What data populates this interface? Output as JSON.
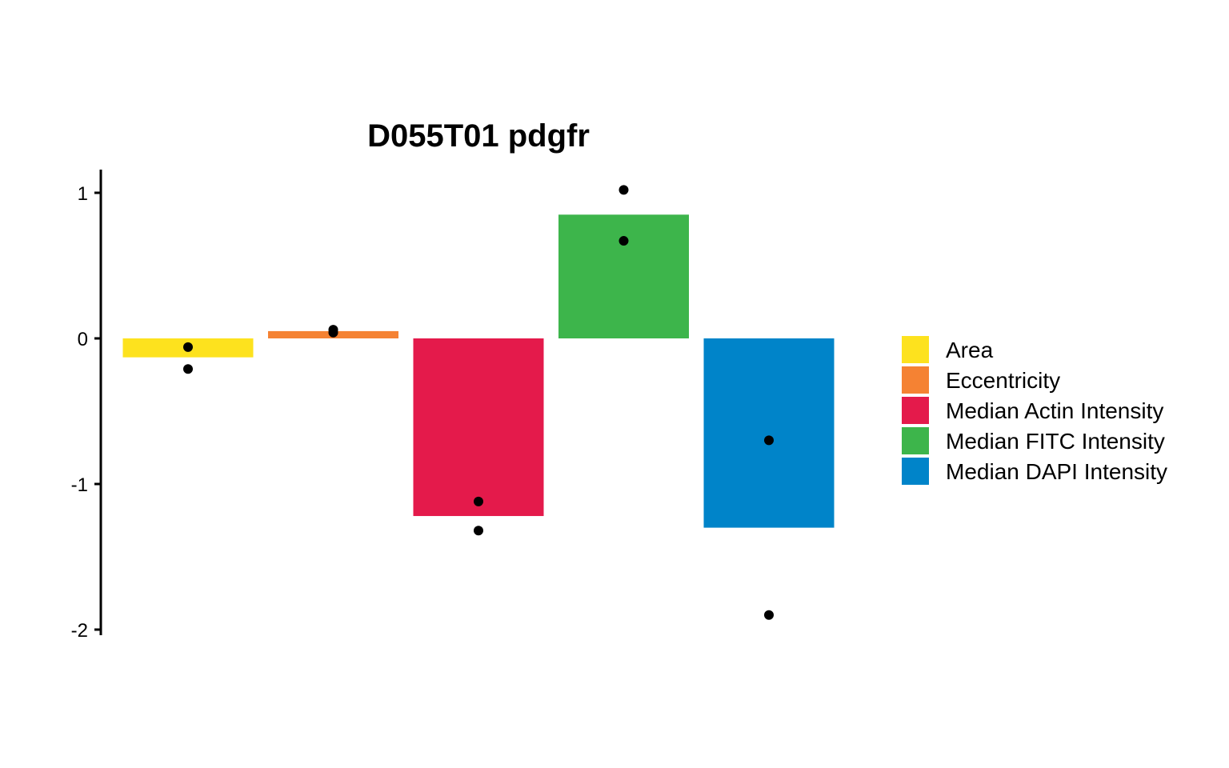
{
  "chart_data": {
    "type": "bar",
    "title": "D055T01 pdgfr",
    "xlabel": "",
    "ylabel": "",
    "ylim": [
      -2.05,
      1.16
    ],
    "y_ticks": [
      1,
      0,
      -1,
      -2
    ],
    "y_tick_labels": [
      "1",
      "0",
      "-1",
      "-2"
    ],
    "grid": false,
    "legend_position": "right",
    "categories": [
      "Area",
      "Eccentricity",
      "Median Actin Intensity",
      "Median FITC Intensity",
      "Median DAPI Intensity"
    ],
    "colors": [
      "#fde21e",
      "#f58233",
      "#e41a4b",
      "#3db54b",
      "#0084c9"
    ],
    "values": [
      -0.13,
      0.05,
      -1.22,
      0.85,
      -1.3
    ],
    "points": [
      [
        -0.06,
        -0.21
      ],
      [
        0.06,
        0.04
      ],
      [
        -1.12,
        -1.32
      ],
      [
        1.02,
        0.67
      ],
      [
        -0.7,
        -1.9
      ]
    ]
  }
}
